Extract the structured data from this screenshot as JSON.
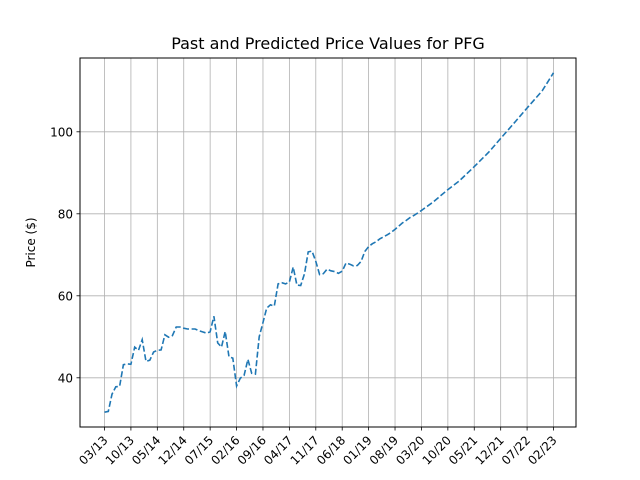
{
  "chart_data": {
    "type": "line",
    "title": "Past and Predicted Price Values for PFG",
    "xlabel": "",
    "ylabel": "Price ($)",
    "ylim": [
      28,
      118
    ],
    "y_ticks": [
      40,
      60,
      80,
      100
    ],
    "x_tick_labels": [
      "03/13",
      "10/13",
      "05/14",
      "12/14",
      "07/15",
      "02/16",
      "09/16",
      "04/17",
      "11/17",
      "06/18",
      "01/19",
      "08/19",
      "03/20",
      "10/20",
      "05/21",
      "12/21",
      "07/22",
      "02/23"
    ],
    "grid": true,
    "line_color": "#1f77b4",
    "series": [
      {
        "x_dates": [
          "2013-03",
          "2013-04",
          "2013-05",
          "2013-06",
          "2013-07",
          "2013-08",
          "2013-09",
          "2013-10",
          "2013-11",
          "2013-12",
          "2014-01",
          "2014-02",
          "2014-03",
          "2014-04",
          "2014-05",
          "2014-06",
          "2014-07",
          "2014-08",
          "2014-09",
          "2014-10",
          "2014-11",
          "2014-12",
          "2015-01",
          "2015-02",
          "2015-03",
          "2015-04",
          "2015-05",
          "2015-06",
          "2015-07",
          "2015-08",
          "2015-09",
          "2015-10",
          "2015-11",
          "2015-12",
          "2016-01",
          "2016-02",
          "2016-03",
          "2016-04",
          "2016-05",
          "2016-06",
          "2016-07",
          "2016-08",
          "2016-09",
          "2016-10",
          "2016-11",
          "2016-12",
          "2017-01",
          "2017-02",
          "2017-03",
          "2017-04",
          "2017-05",
          "2017-06",
          "2017-07",
          "2017-08",
          "2017-09",
          "2017-10",
          "2017-11",
          "2017-12",
          "2018-01",
          "2018-02",
          "2018-03",
          "2018-04",
          "2018-05",
          "2018-06",
          "2018-07",
          "2018-08",
          "2018-09",
          "2018-10",
          "2018-11",
          "2018-12",
          "2019-01",
          "2019-02",
          "2019-03",
          "2019-04",
          "2019-05",
          "2019-06",
          "2019-07",
          "2019-08",
          "2019-09",
          "2019-10",
          "2019-11",
          "2019-12",
          "2020-01",
          "2020-02",
          "2020-03",
          "2020-06",
          "2020-10",
          "2021-01",
          "2021-05",
          "2021-09",
          "2021-12",
          "2022-04",
          "2022-07",
          "2022-11",
          "2023-02"
        ],
        "y": [
          31.6,
          31.8,
          36.0,
          37.8,
          37.9,
          43.2,
          43.4,
          43.3,
          47.5,
          46.7,
          49.3,
          44.0,
          44.3,
          46.3,
          46.7,
          46.8,
          50.5,
          49.9,
          50.3,
          52.4,
          52.4,
          52.1,
          51.9,
          51.9,
          51.9,
          51.5,
          51.2,
          50.9,
          51.2,
          55.0,
          48.5,
          47.5,
          51.3,
          45.1,
          44.8,
          38.0,
          39.9,
          40.6,
          44.5,
          41.1,
          40.9,
          50.0,
          53.5,
          57.0,
          57.8,
          57.5,
          62.9,
          63.2,
          62.9,
          63.4,
          67.0,
          62.6,
          62.5,
          65.4,
          70.7,
          70.9,
          68.4,
          65.2,
          65.4,
          66.5,
          66.1,
          65.9,
          65.5,
          66.0,
          68.0,
          67.7,
          67.3,
          67.4,
          68.4,
          70.8,
          72.0,
          72.7,
          73.2,
          73.9,
          74.4,
          74.9,
          75.5,
          76.2,
          77.0,
          77.8,
          78.4,
          79.1,
          79.6,
          80.2,
          80.8,
          82.8,
          85.9,
          88.0,
          91.5,
          95.2,
          98.4,
          102.6,
          105.8,
          110.0,
          114.4
        ]
      }
    ]
  }
}
